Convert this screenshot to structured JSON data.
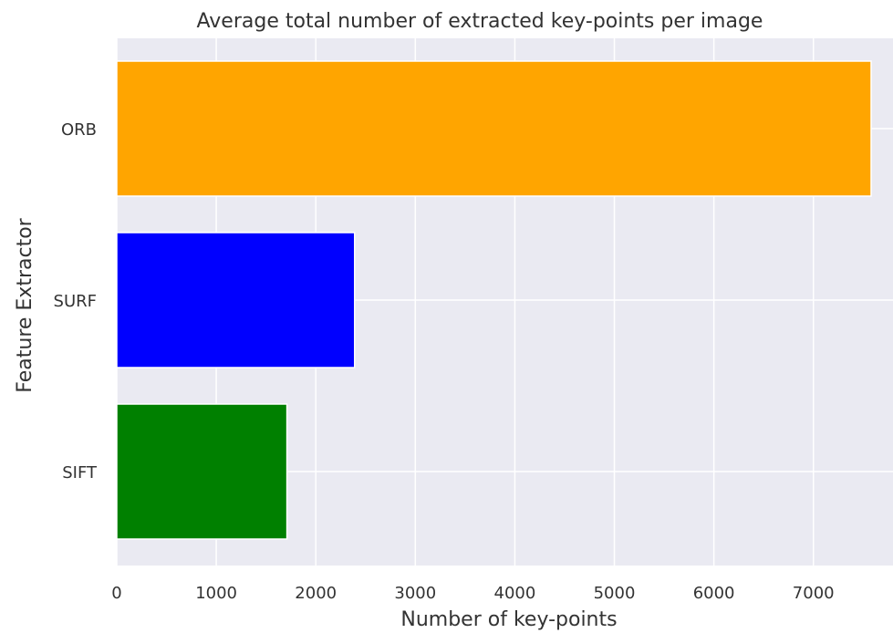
{
  "chart_data": {
    "type": "bar",
    "orientation": "horizontal",
    "title": "Average total number of extracted key-points per image",
    "xlabel": "Number of key-points",
    "ylabel": "Feature Extractor",
    "categories": [
      "SIFT",
      "SURF",
      "ORB"
    ],
    "values": [
      1710,
      2390,
      7580
    ],
    "bar_colors": [
      "#008000",
      "#0000ff",
      "#ffa500"
    ],
    "xlim": [
      0,
      7800
    ],
    "xticks": [
      0,
      1000,
      2000,
      3000,
      4000,
      5000,
      6000,
      7000
    ],
    "xtick_labels": [
      "0",
      "1000",
      "2000",
      "3000",
      "4000",
      "5000",
      "6000",
      "7000"
    ],
    "grid": true,
    "background_color": "#eaeaf2",
    "grid_color": "#ffffff"
  }
}
